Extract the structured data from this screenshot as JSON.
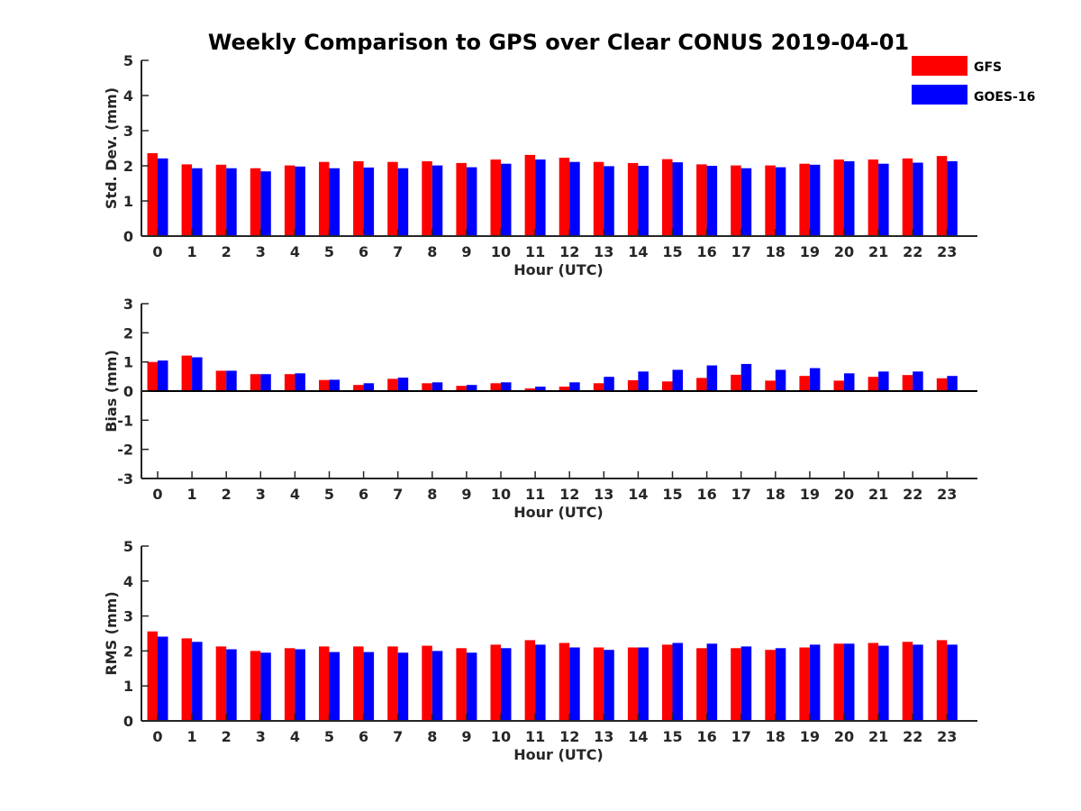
{
  "chart_data": {
    "type": "bar",
    "title": "Weekly Comparison to GPS over Clear CONUS 2019-04-01",
    "legend": {
      "position": "top-right",
      "entries": [
        {
          "name": "GFS",
          "color": "#ff0000"
        },
        {
          "name": "GOES-16",
          "color": "#0000ff"
        }
      ]
    },
    "categories": [
      "0",
      "1",
      "2",
      "3",
      "4",
      "5",
      "6",
      "7",
      "8",
      "9",
      "10",
      "11",
      "12",
      "13",
      "14",
      "15",
      "16",
      "17",
      "18",
      "19",
      "20",
      "21",
      "22",
      "23"
    ],
    "panels": [
      {
        "id": "stddev",
        "xlabel": "Hour (UTC)",
        "ylabel": "Std. Dev. (mm)",
        "ylim": [
          0,
          5
        ],
        "yticks": [
          "0",
          "1",
          "2",
          "3",
          "4",
          "5"
        ],
        "series": [
          {
            "name": "GFS",
            "color": "#ff0000",
            "values": [
              2.36,
              2.04,
              2.03,
              1.93,
              2.01,
              2.11,
              2.13,
              2.11,
              2.13,
              2.08,
              2.18,
              2.31,
              2.23,
              2.11,
              2.08,
              2.19,
              2.04,
              2.01,
              2.01,
              2.06,
              2.18,
              2.18,
              2.21,
              2.28
            ]
          },
          {
            "name": "GOES-16",
            "color": "#0000ff",
            "values": [
              2.21,
              1.93,
              1.93,
              1.84,
              1.98,
              1.93,
              1.95,
              1.93,
              2.01,
              1.96,
              2.06,
              2.18,
              2.11,
              1.99,
              2.0,
              2.1,
              2.0,
              1.93,
              1.96,
              2.03,
              2.13,
              2.06,
              2.09,
              2.13
            ]
          }
        ]
      },
      {
        "id": "bias",
        "xlabel": "Hour (UTC)",
        "ylabel": "Bias (mm)",
        "ylim": [
          -3,
          3
        ],
        "yticks": [
          "-3",
          "-2",
          "-1",
          "0",
          "1",
          "2",
          "3"
        ],
        "series": [
          {
            "name": "GFS",
            "color": "#ff0000",
            "values": [
              1.0,
              1.22,
              0.7,
              0.58,
              0.58,
              0.38,
              0.21,
              0.42,
              0.27,
              0.18,
              0.27,
              0.09,
              0.15,
              0.27,
              0.37,
              0.33,
              0.45,
              0.56,
              0.36,
              0.52,
              0.36,
              0.49,
              0.55,
              0.44
            ]
          },
          {
            "name": "GOES-16",
            "color": "#0000ff",
            "values": [
              1.05,
              1.16,
              0.7,
              0.58,
              0.61,
              0.39,
              0.27,
              0.46,
              0.3,
              0.21,
              0.3,
              0.15,
              0.3,
              0.49,
              0.67,
              0.73,
              0.88,
              0.93,
              0.73,
              0.79,
              0.61,
              0.67,
              0.67,
              0.52
            ]
          }
        ]
      },
      {
        "id": "rms",
        "xlabel": "Hour (UTC)",
        "ylabel": "RMS (mm)",
        "ylim": [
          0,
          5
        ],
        "yticks": [
          "0",
          "1",
          "2",
          "3",
          "4",
          "5"
        ],
        "series": [
          {
            "name": "GFS",
            "color": "#ff0000",
            "values": [
              2.56,
              2.36,
              2.13,
              2.0,
              2.08,
              2.13,
              2.13,
              2.13,
              2.15,
              2.08,
              2.18,
              2.31,
              2.23,
              2.1,
              2.1,
              2.18,
              2.08,
              2.08,
              2.03,
              2.1,
              2.21,
              2.23,
              2.26,
              2.31
            ]
          },
          {
            "name": "GOES-16",
            "color": "#0000ff",
            "values": [
              2.41,
              2.26,
              2.05,
              1.95,
              2.05,
              1.97,
              1.97,
              1.95,
              2.0,
              1.95,
              2.08,
              2.18,
              2.1,
              2.03,
              2.1,
              2.23,
              2.21,
              2.13,
              2.08,
              2.18,
              2.21,
              2.15,
              2.18,
              2.18
            ]
          }
        ]
      }
    ]
  }
}
